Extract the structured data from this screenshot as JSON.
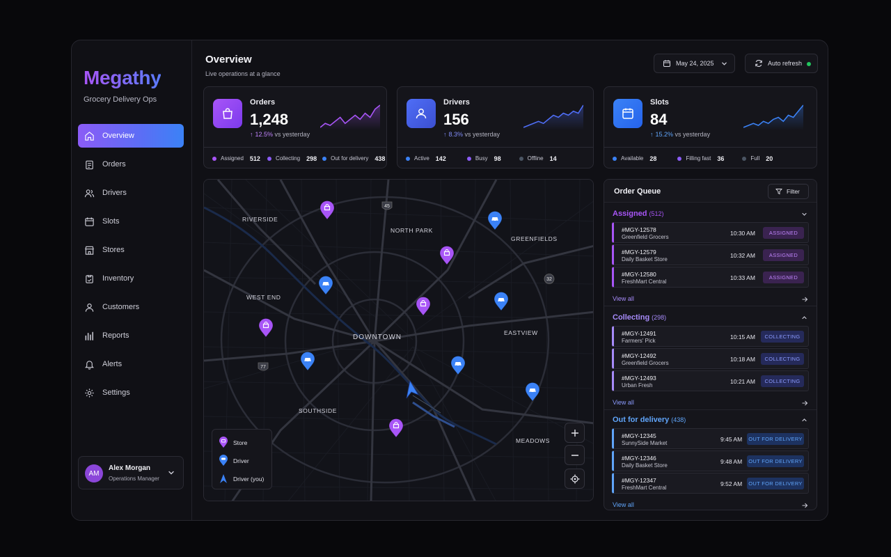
{
  "brand": {
    "name": "Megathy",
    "subtitle": "Grocery Delivery Ops"
  },
  "nav": [
    {
      "label": "Overview",
      "icon": "home-icon",
      "active": true
    },
    {
      "label": "Orders",
      "icon": "clipboard-icon"
    },
    {
      "label": "Drivers",
      "icon": "users-icon"
    },
    {
      "label": "Slots",
      "icon": "calendar-icon"
    },
    {
      "label": "Stores",
      "icon": "store-icon"
    },
    {
      "label": "Inventory",
      "icon": "box-icon"
    },
    {
      "label": "Customers",
      "icon": "user-icon"
    },
    {
      "label": "Reports",
      "icon": "bar-chart-icon"
    },
    {
      "label": "Alerts",
      "icon": "bell-icon"
    },
    {
      "label": "Settings",
      "icon": "gear-icon"
    }
  ],
  "user": {
    "initials": "AM",
    "name": "Alex Morgan",
    "role": "Operations Manager"
  },
  "header": {
    "title": "Overview",
    "subtitle": "Live operations at a glance",
    "date": "May 24, 2025",
    "refresh_label": "Auto refresh"
  },
  "cards": [
    {
      "label": "Orders",
      "value": "1,248",
      "delta": "12.5%",
      "delta_suffix": "vs yesterday",
      "color": "#a855f7",
      "sparkline": [
        3,
        5,
        4,
        6,
        8,
        5,
        7,
        9,
        7,
        10,
        8,
        12,
        14
      ],
      "stats": [
        {
          "label": "Assigned",
          "value": "512",
          "color": "#a855f7"
        },
        {
          "label": "Collecting",
          "value": "298",
          "color": "#8b5cf6"
        },
        {
          "label": "Out for delivery",
          "value": "438",
          "color": "#3b82f6"
        }
      ]
    },
    {
      "label": "Drivers",
      "value": "156",
      "delta": "8.3%",
      "delta_suffix": "vs yesterday",
      "color": "#4f6ef7",
      "sparkline": [
        3,
        4,
        5,
        6,
        5,
        7,
        9,
        8,
        10,
        9,
        11,
        10,
        14
      ],
      "stats": [
        {
          "label": "Active",
          "value": "142",
          "color": "#3b82f6"
        },
        {
          "label": "Busy",
          "value": "98",
          "color": "#8b5cf6"
        },
        {
          "label": "Offline",
          "value": "14",
          "color": "#4b5563"
        }
      ]
    },
    {
      "label": "Slots",
      "value": "84",
      "delta": "15.2%",
      "delta_suffix": "vs yesterday",
      "color": "#3b82f6",
      "sparkline": [
        3,
        4,
        5,
        4,
        6,
        5,
        7,
        8,
        6,
        9,
        8,
        11,
        14
      ],
      "stats": [
        {
          "label": "Available",
          "value": "28",
          "color": "#3b82f6"
        },
        {
          "label": "Filling fast",
          "value": "36",
          "color": "#8b5cf6"
        },
        {
          "label": "Full",
          "value": "20",
          "color": "#4b5563"
        }
      ]
    }
  ],
  "map": {
    "labels": [
      {
        "text": "RIVERSIDE"
      },
      {
        "text": "NORTH PARK"
      },
      {
        "text": "GREENFIELDS"
      },
      {
        "text": "WEST END"
      },
      {
        "text": "DOWNTOWN"
      },
      {
        "text": "EASTVIEW"
      },
      {
        "text": "SOUTHSIDE"
      },
      {
        "text": "MEADOWS"
      }
    ],
    "shields": [
      "45",
      "32",
      "77"
    ],
    "legend": [
      {
        "label": "Store",
        "icon": "store-pin-icon"
      },
      {
        "label": "Driver",
        "icon": "driver-pin-icon"
      },
      {
        "label": "Driver (you)",
        "icon": "navigation-arrow-icon"
      }
    ]
  },
  "queue": {
    "title": "Order Queue",
    "filter_label": "Filter",
    "view_all": "View all",
    "sections": [
      {
        "title": "Assigned",
        "count": "(512)",
        "color": "#a855f7",
        "badge": "ASSIGNED",
        "badge_bg": "#3a2350",
        "badge_fg": "#c084fc",
        "rows": [
          {
            "id": "#MGY-12578",
            "store": "Greenfield Grocers",
            "time": "10:30 AM"
          },
          {
            "id": "#MGY-12579",
            "store": "Daily Basket Store",
            "time": "10:32 AM"
          },
          {
            "id": "#MGY-12580",
            "store": "FreshMart Central",
            "time": "10:33 AM"
          }
        ]
      },
      {
        "title": "Collecting",
        "count": "(298)",
        "color": "#a78bfa",
        "badge": "COLLECTING",
        "badge_bg": "#252a5a",
        "badge_fg": "#8b9bff",
        "rows": [
          {
            "id": "#MGY-12491",
            "store": "Farmers' Pick",
            "time": "10:15 AM"
          },
          {
            "id": "#MGY-12492",
            "store": "Greenfield Grocers",
            "time": "10:18 AM"
          },
          {
            "id": "#MGY-12493",
            "store": "Urban Fresh",
            "time": "10:21 AM"
          }
        ]
      },
      {
        "title": "Out for delivery",
        "count": "(438)",
        "color": "#60a5fa",
        "badge": "OUT FOR DELIVERY",
        "badge_bg": "#1d3260",
        "badge_fg": "#60a5fa",
        "rows": [
          {
            "id": "#MGY-12345",
            "store": "SunnySide Market",
            "time": "9:45 AM"
          },
          {
            "id": "#MGY-12346",
            "store": "Daily Basket Store",
            "time": "9:48 AM"
          },
          {
            "id": "#MGY-12347",
            "store": "FreshMart Central",
            "time": "9:52 AM"
          }
        ]
      }
    ]
  }
}
